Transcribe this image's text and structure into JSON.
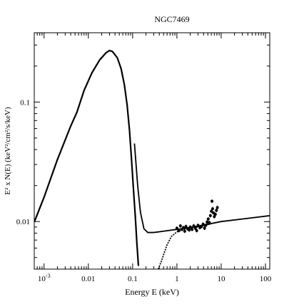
{
  "chart_data": {
    "type": "scatter",
    "title": "NGC7469",
    "xlabel": "Energy E (keV)",
    "ylabel": "E² x N(E) (keV²/cm²/s/keV)",
    "xscale": "log",
    "yscale": "log",
    "xlim": [
      0.0006,
      125
    ],
    "ylim": [
      0.004,
      0.38
    ],
    "grid": false,
    "x_tick_labels": [
      {
        "value": 0.001,
        "base": "10",
        "exp": "-3"
      },
      {
        "value": 0.01,
        "text": "0.01"
      },
      {
        "value": 0.1,
        "text": "0.1"
      },
      {
        "value": 1,
        "text": "1"
      },
      {
        "value": 10,
        "text": "10"
      },
      {
        "value": 100,
        "text": "100"
      }
    ],
    "y_tick_labels": [
      {
        "value": 0.01,
        "text": "0.01"
      },
      {
        "value": 0.1,
        "text": "0.1"
      }
    ],
    "series": [
      {
        "style": "blackbody-curve",
        "color": "#000000",
        "points": [
          [
            0.0006,
            0.0099
          ],
          [
            0.001,
            0.016
          ],
          [
            0.002,
            0.033
          ],
          [
            0.004,
            0.063
          ],
          [
            0.0055,
            0.082
          ],
          [
            0.008,
            0.125
          ],
          [
            0.012,
            0.175
          ],
          [
            0.018,
            0.225
          ],
          [
            0.025,
            0.258
          ],
          [
            0.03,
            0.27
          ],
          [
            0.035,
            0.265
          ],
          [
            0.045,
            0.235
          ],
          [
            0.055,
            0.19
          ],
          [
            0.065,
            0.14
          ],
          [
            0.075,
            0.095
          ],
          [
            0.085,
            0.058
          ],
          [
            0.095,
            0.032
          ],
          [
            0.105,
            0.018
          ],
          [
            0.115,
            0.011
          ],
          [
            0.125,
            0.0065
          ],
          [
            0.135,
            0.0043
          ]
        ]
      },
      {
        "style": "total-model",
        "color": "#000000",
        "points": [
          [
            0.11,
            0.045
          ],
          [
            0.13,
            0.02
          ],
          [
            0.15,
            0.012
          ],
          [
            0.18,
            0.0087
          ],
          [
            0.22,
            0.0081
          ],
          [
            0.3,
            0.0081
          ],
          [
            0.5,
            0.0083
          ],
          [
            1,
            0.0086
          ],
          [
            2,
            0.0089
          ],
          [
            5,
            0.0095
          ],
          [
            10,
            0.01
          ],
          [
            30,
            0.0105
          ],
          [
            125,
            0.0112
          ]
        ]
      },
      {
        "style": "absorbed-model",
        "color": "#000000",
        "points": [
          [
            0.38,
            0.004
          ],
          [
            0.45,
            0.0047
          ],
          [
            0.52,
            0.0055
          ],
          [
            0.6,
            0.0064
          ],
          [
            0.75,
            0.0075
          ],
          [
            1,
            0.0082
          ],
          [
            1.5,
            0.0086
          ],
          [
            2.5,
            0.0089
          ],
          [
            4,
            0.0092
          ],
          [
            6,
            0.0096
          ]
        ]
      },
      {
        "style": "data-points",
        "color": "#000000",
        "points": [
          [
            1,
            0.0088
          ],
          [
            1.1,
            0.0084
          ],
          [
            1.2,
            0.0092
          ],
          [
            1.3,
            0.0086
          ],
          [
            1.4,
            0.0089
          ],
          [
            1.5,
            0.0083
          ],
          [
            1.6,
            0.0091
          ],
          [
            1.75,
            0.0087
          ],
          [
            1.9,
            0.0085
          ],
          [
            2,
            0.009
          ],
          [
            2.2,
            0.0086
          ],
          [
            2.4,
            0.0092
          ],
          [
            2.6,
            0.0088
          ],
          [
            2.8,
            0.0084
          ],
          [
            3,
            0.0093
          ],
          [
            3.3,
            0.0089
          ],
          [
            3.6,
            0.0091
          ],
          [
            3.9,
            0.0095
          ],
          [
            4.2,
            0.0088
          ],
          [
            4.5,
            0.0093
          ],
          [
            4.8,
            0.0099
          ],
          [
            5.1,
            0.0105
          ],
          [
            5.4,
            0.0098
          ],
          [
            5.7,
            0.0112
          ],
          [
            6,
            0.0122
          ],
          [
            6.2,
            0.0148
          ],
          [
            6.4,
            0.0128
          ],
          [
            6.7,
            0.0118
          ],
          [
            7,
            0.011
          ],
          [
            7.4,
            0.0115
          ],
          [
            7.8,
            0.0124
          ],
          [
            8.2,
            0.0131
          ]
        ]
      }
    ]
  }
}
